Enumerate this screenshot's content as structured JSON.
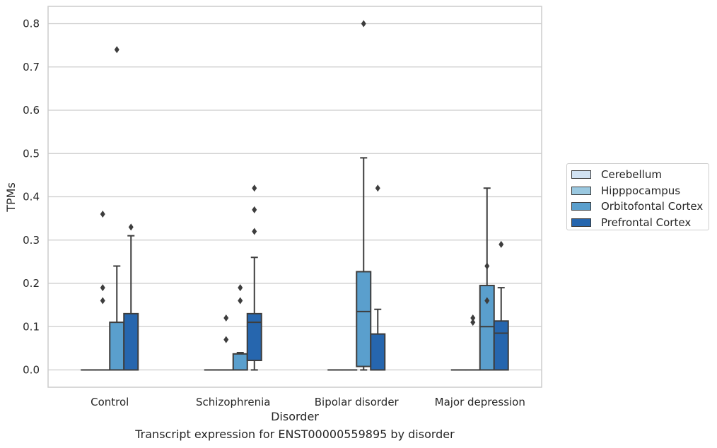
{
  "caption": "Transcript expression for ENST00000559895 by disorder",
  "colors": {
    "Cerebellum": "#d1e2f2",
    "Hipppocampus": "#9ac8e0",
    "Orbitofontal Cortex": "#5a9fcd",
    "Prefrontal Cortex": "#2666ae",
    "edge": "#3d3d3d",
    "grid": "#cccccc"
  },
  "chart_data": {
    "type": "box",
    "xlabel": "Disorder",
    "ylabel": "TPMs",
    "ylim": [
      -0.04,
      0.84
    ],
    "yticks": [
      0.0,
      0.1,
      0.2,
      0.3,
      0.4,
      0.5,
      0.6,
      0.7,
      0.8
    ],
    "ytick_labels": [
      "0.0",
      "0.1",
      "0.2",
      "0.3",
      "0.4",
      "0.5",
      "0.6",
      "0.7",
      "0.8"
    ],
    "grid": true,
    "legend_position": "right",
    "categories": [
      "Control",
      "Schizophrenia",
      "Bipolar disorder",
      "Major depression"
    ],
    "series": [
      {
        "name": "Cerebellum",
        "boxes": [
          {
            "q1": 0,
            "median": 0,
            "q3": 0,
            "whisker_low": 0,
            "whisker_high": 0,
            "outliers": []
          },
          {
            "q1": 0,
            "median": 0,
            "q3": 0,
            "whisker_low": 0,
            "whisker_high": 0,
            "outliers": []
          },
          {
            "q1": 0,
            "median": 0,
            "q3": 0,
            "whisker_low": 0,
            "whisker_high": 0,
            "outliers": []
          },
          {
            "q1": 0,
            "median": 0,
            "q3": 0,
            "whisker_low": 0,
            "whisker_high": 0,
            "outliers": []
          }
        ]
      },
      {
        "name": "Hipppocampus",
        "boxes": [
          {
            "q1": 0,
            "median": 0,
            "q3": 0,
            "whisker_low": 0,
            "whisker_high": 0,
            "outliers": [
              0.36,
              0.19,
              0.16
            ]
          },
          {
            "q1": 0,
            "median": 0,
            "q3": 0,
            "whisker_low": 0,
            "whisker_high": 0,
            "outliers": [
              0.12,
              0.07
            ]
          },
          {
            "q1": 0,
            "median": 0,
            "q3": 0,
            "whisker_low": 0,
            "whisker_high": 0,
            "outliers": []
          },
          {
            "q1": 0,
            "median": 0,
            "q3": 0,
            "whisker_low": 0,
            "whisker_high": 0,
            "outliers": [
              0.12,
              0.11
            ]
          }
        ]
      },
      {
        "name": "Orbitofontal Cortex",
        "boxes": [
          {
            "q1": 0,
            "median": 0,
            "q3": 0.11,
            "whisker_low": 0,
            "whisker_high": 0.24,
            "outliers": [
              0.74
            ]
          },
          {
            "q1": 0,
            "median": 0,
            "q3": 0.037,
            "whisker_low": 0,
            "whisker_high": 0.04,
            "outliers": [
              0.19,
              0.16
            ]
          },
          {
            "q1": 0.008,
            "median": 0.135,
            "q3": 0.227,
            "whisker_low": 0,
            "whisker_high": 0.49,
            "outliers": [
              0.8
            ]
          },
          {
            "q1": 0,
            "median": 0.1,
            "q3": 0.195,
            "whisker_low": 0,
            "whisker_high": 0.42,
            "outliers": [
              0.24,
              0.16
            ]
          }
        ]
      },
      {
        "name": "Prefrontal Cortex",
        "boxes": [
          {
            "q1": 0,
            "median": 0,
            "q3": 0.13,
            "whisker_low": 0,
            "whisker_high": 0.31,
            "outliers": [
              0.33
            ]
          },
          {
            "q1": 0.022,
            "median": 0.11,
            "q3": 0.13,
            "whisker_low": 0,
            "whisker_high": 0.26,
            "outliers": [
              0.42,
              0.37,
              0.32
            ]
          },
          {
            "q1": 0,
            "median": 0,
            "q3": 0.083,
            "whisker_low": 0,
            "whisker_high": 0.14,
            "outliers": [
              0.42
            ]
          },
          {
            "q1": 0,
            "median": 0.085,
            "q3": 0.113,
            "whisker_low": 0,
            "whisker_high": 0.19,
            "outliers": [
              0.29
            ]
          }
        ]
      }
    ]
  }
}
